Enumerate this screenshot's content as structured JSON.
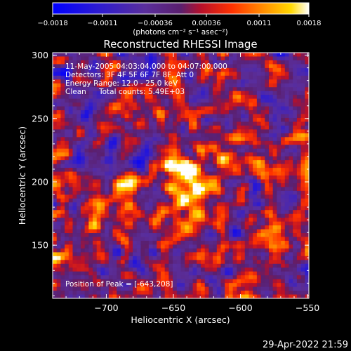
{
  "colorbar": {
    "tick_labels": [
      "-0.0018",
      "-0.0011",
      "-0.00036",
      "0.00036",
      "0.0011",
      "0.0018"
    ],
    "units_html": "(photons cm⁻² s⁻¹ asec⁻²)"
  },
  "chart_data": {
    "type": "heatmap",
    "title": "Reconstructed RHESSI Image",
    "xlabel": "Heliocentric X (arcsec)",
    "ylabel": "Heliocentric Y (arcsec)",
    "xlim": [
      -740,
      -549
    ],
    "ylim": [
      108,
      302
    ],
    "x_ticks": [
      -700,
      -650,
      -600,
      -550
    ],
    "y_ticks": [
      150,
      200,
      250,
      300
    ],
    "x_tick_labels": [
      "−700",
      "−650",
      "−600",
      "−550"
    ],
    "y_tick_labels": [
      "150",
      "200",
      "250",
      "300"
    ],
    "clim": [
      -0.0018,
      0.0018
    ],
    "colormap": "RHESSI blue-purple-red-yellow-white",
    "peak": {
      "x": -643,
      "y": 208
    },
    "sources": [
      {
        "x": -645,
        "y": 212,
        "sx": 8,
        "sy": 11,
        "amp": 0.0019
      },
      {
        "x": -628,
        "y": 193,
        "sx": 13,
        "sy": 10,
        "amp": 0.0008
      },
      {
        "x": -647,
        "y": 180,
        "sx": 8,
        "sy": 14,
        "amp": 0.0006
      },
      {
        "x": -612,
        "y": 235,
        "sx": 10,
        "sy": 10,
        "amp": 0.0004
      },
      {
        "x": -705,
        "y": 185,
        "sx": 18,
        "sy": 20,
        "amp": 0.0003
      }
    ]
  },
  "annotations": {
    "time_range": "11-May-2005 04:03:04.000 to 04:07:00.000",
    "detectors": "Detectors: 3F 4F 5F 6F 7F 8F, Att 0",
    "energy": "Energy Range: 12.0 - 25.0 keV",
    "method": "Clean",
    "total_counts": "Total counts: 5.49E+03",
    "peak_label": "Position of Peak = [-643,208]"
  },
  "footer": {
    "date_stamp": "29-Apr-2022 21:59"
  }
}
